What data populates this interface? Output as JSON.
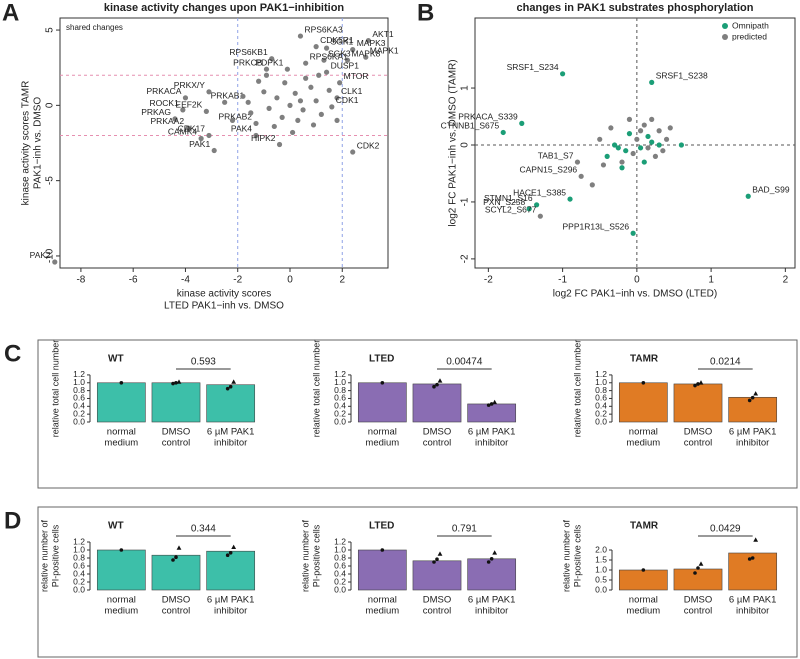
{
  "chart_data": [
    {
      "type": "scatter",
      "panel": "A",
      "title": "kinase activity changes upon PAK1−inhibition",
      "xlabel": [
        "kinase activity scores",
        "LTED PAK1−inh vs. DMSO"
      ],
      "ylabel": [
        "kinase activity scores TAMR",
        "PAK1−inh vs. DMSO"
      ],
      "xlim": [
        -8.8,
        3.75
      ],
      "ylim": [
        -10.8,
        5.8
      ],
      "xticks": [
        -8,
        -6,
        -4,
        -2,
        0,
        2
      ],
      "yticks": [
        -10,
        -5,
        0,
        5
      ],
      "vlines": [
        -2,
        2
      ],
      "hlines": [
        -2,
        2
      ],
      "vline_color": "#8fa3e6",
      "hline_color": "#e68fb0",
      "annotation": {
        "text": "shared changes",
        "color": "#c8306e"
      },
      "series": [
        {
          "color": "#7f7f7f",
          "x": [
            -9,
            3.0,
            2.4,
            2.9,
            2.2,
            0.4,
            1.0,
            1.4,
            -0.7,
            1.3,
            -0.9,
            -0.1,
            0.6,
            1.4,
            1.9,
            1.8,
            1.6,
            -3.1,
            -4.0,
            -1.6,
            -4.1,
            -3.2,
            -4.4,
            -3.9,
            -3.4,
            -1.3,
            -1.3,
            -0.4,
            2.4,
            -3.1,
            -2.9,
            -0.5,
            0.2,
            0.5,
            -0.8,
            1.0,
            0.8,
            -0.3,
            0.3,
            1.2,
            -1.0,
            -0.2,
            0.6,
            -1.5,
            1.5,
            -0.6,
            0.9,
            0.0,
            -1.2,
            1.1,
            -2.5,
            -2.2,
            0.4,
            -0.9,
            1.8,
            0.1,
            -1.8
          ],
          "y": [
            -10.4,
            4.3,
            3.7,
            3.2,
            3.0,
            4.6,
            3.9,
            3.8,
            3.1,
            3.0,
            2.4,
            2.4,
            2.8,
            2.2,
            1.5,
            0.5,
            -0.1,
            0.9,
            0.5,
            0.2,
            -0.3,
            -0.4,
            -0.9,
            -1.5,
            -2.2,
            -1.2,
            -2.0,
            -2.6,
            -3.1,
            -2.0,
            -3.0,
            0.5,
            0.8,
            -0.3,
            -0.2,
            0.3,
            1.2,
            -0.8,
            -1.0,
            -0.6,
            0.9,
            1.5,
            1.8,
            -0.5,
            1.0,
            -1.4,
            -1.3,
            0.0,
            1.6,
            2.0,
            0.2,
            -1.0,
            0.3,
            2.0,
            -1.0,
            -1.8,
            0.6
          ],
          "labels": [
            "PAK2",
            "AKT1",
            "MAPK3",
            "MAPK1",
            "MAPK8",
            "RPS6KA3",
            "CDK5R1",
            "SGK1",
            "RPS6KB1",
            "SGK3",
            "PRKCB",
            "PDPK1",
            "RPS6KA1",
            "DUSP1",
            "MTOR",
            "CLK1",
            "CDK1",
            "PRKX/Y",
            "PRKACA",
            "PRKAB1",
            "ROCK1",
            "EEF2K",
            "PRKAG",
            "PRKAA2",
            "CAMK4",
            "PRKAB2",
            "PAK4",
            "HIPK2",
            "CDK2",
            "CDK17",
            "PAK1",
            null,
            null,
            null,
            null,
            null,
            null,
            null,
            null,
            null,
            null,
            null,
            null,
            null,
            null,
            null,
            null,
            null,
            null,
            null,
            null,
            null,
            null,
            null,
            null,
            null,
            null
          ],
          "label_colors": [
            "#c8306e",
            "#c8306e",
            "#c8306e",
            "#c8306e",
            "#c8306e",
            "#222",
            "#222",
            "#222",
            "#222",
            "#222",
            "#222",
            "#222",
            "#222",
            "#222",
            "#222",
            "#222",
            "#222",
            "#222",
            "#222",
            "#222",
            "#222",
            "#222",
            "#222",
            "#222",
            "#222",
            "#222",
            "#222",
            "#222",
            "#222",
            "#c8306e",
            "#c8306e",
            null,
            null,
            null,
            null,
            null,
            null,
            null,
            null,
            null,
            null,
            null,
            null,
            null,
            null,
            null,
            null,
            null,
            null,
            null,
            null,
            null,
            null,
            null,
            null,
            null,
            null
          ]
        }
      ]
    },
    {
      "type": "scatter",
      "panel": "B",
      "title": "changes in PAK1 substrates phosphorylation",
      "xlabel": [
        "log2 FC PAK1−inh vs. DMSO (LTED)"
      ],
      "ylabel": [
        "log2 FC PAK1−inh vs. DMSO (TAMR)"
      ],
      "xlim": [
        -2.18,
        2.13
      ],
      "ylim": [
        -2.16,
        2.23
      ],
      "xticks": [
        -2,
        -1,
        0,
        1,
        2
      ],
      "yticks": [
        -2,
        -1,
        0,
        1
      ],
      "vlines": [
        0
      ],
      "hlines": [
        0
      ],
      "vline_color": "#555",
      "hline_color": "#555",
      "legend": "top-right",
      "series": [
        {
          "name": "Omnipath",
          "color": "#1b9e77",
          "x": [
            -1.0,
            0.2,
            -1.55,
            -1.8,
            -1.35,
            -1.45,
            1.5,
            -0.05,
            -0.9,
            -0.3,
            -0.15,
            -0.25,
            0.05,
            0.2,
            -0.1,
            0.3,
            0.6,
            0.1,
            -0.4,
            -0.2,
            0.15
          ],
          "y": [
            1.25,
            1.1,
            0.38,
            0.22,
            -1.05,
            -1.12,
            -0.9,
            -1.55,
            -0.95,
            0.0,
            -0.1,
            -0.05,
            -0.05,
            0.05,
            0.2,
            0.0,
            0.0,
            -0.3,
            -0.2,
            -0.4,
            0.15
          ],
          "labels": [
            "SRSF1_S234",
            "SRSF1_S238",
            "PRKACA_S339",
            "CTNNB1_S675",
            "STMN1_S16",
            "PXN_S258",
            "BAD_S99",
            "PPP1R13L_S526",
            "HACE1_S385",
            null,
            null,
            null,
            null,
            null,
            null,
            null,
            null,
            null,
            null,
            null,
            null
          ]
        },
        {
          "name": "predicted",
          "color": "#7f7f7f",
          "x": [
            -0.8,
            -0.75,
            -1.3,
            -0.35,
            0.0,
            0.1,
            0.2,
            -0.05,
            0.25,
            0.4,
            -0.5,
            -0.45,
            0.05,
            -0.1,
            0.3,
            0.35,
            -0.6,
            -0.2,
            0.15,
            0.45
          ],
          "y": [
            -0.3,
            -0.55,
            -1.25,
            0.3,
            0.1,
            0.35,
            0.45,
            -0.15,
            -0.2,
            0.1,
            0.1,
            -0.35,
            0.25,
            0.45,
            0.25,
            -0.1,
            -0.7,
            -0.3,
            -0.05,
            0.3
          ],
          "labels": [
            "TAB1_S7",
            "CAPN15_S296",
            "SCYL2_S677",
            null,
            null,
            null,
            null,
            null,
            null,
            null,
            null,
            null,
            null,
            null,
            null,
            null,
            null,
            null,
            null,
            null
          ]
        }
      ]
    },
    {
      "type": "bar",
      "panel": "C",
      "title": "WT",
      "color": "#3dbfa9",
      "ylabel": [
        "relative total cell number"
      ],
      "categories": [
        [
          "normal",
          "medium"
        ],
        [
          "DMSO",
          "control"
        ],
        [
          "6 µM PAK1",
          "inhibitor"
        ]
      ],
      "values": [
        1.0,
        1.0,
        0.95
      ],
      "replicates": [
        [
          1.0
        ],
        [
          0.98,
          1.0,
          1.02
        ],
        [
          0.85,
          0.9,
          1.02
        ]
      ],
      "ylim": [
        0,
        1.3
      ],
      "yticks": [
        {
          "value": 0,
          "label": "0.0"
        },
        0.2,
        0.4,
        0.6,
        0.8,
        {
          "value": 1,
          "label": "1.0"
        },
        1.2
      ],
      "comparison": {
        "between": [
          1,
          2
        ],
        "label": "0.593"
      }
    },
    {
      "type": "bar",
      "title": "LTED",
      "color": "#8a6db3",
      "ylabel": [
        "relative total cell number"
      ],
      "categories": [
        [
          "normal",
          "medium"
        ],
        [
          "DMSO",
          "control"
        ],
        [
          "6 µM PAK1",
          "inhibitor"
        ]
      ],
      "values": [
        1.0,
        0.97,
        0.46
      ],
      "replicates": [
        [
          1.0
        ],
        [
          0.9,
          0.95,
          1.05
        ],
        [
          0.43,
          0.46,
          0.5
        ]
      ],
      "ylim": [
        0,
        1.3
      ],
      "yticks": [
        {
          "value": 0,
          "label": "0.0"
        },
        0.2,
        0.4,
        0.6,
        0.8,
        {
          "value": 1,
          "label": "1.0"
        },
        1.2
      ],
      "comparison": {
        "between": [
          1,
          2
        ],
        "label": "0.00474"
      }
    },
    {
      "type": "bar",
      "title": "TAMR",
      "color": "#e07b24",
      "ylabel": [
        "relative total cell number"
      ],
      "categories": [
        [
          "normal",
          "medium"
        ],
        [
          "DMSO",
          "control"
        ],
        [
          "6 µM PAK1",
          "inhibitor"
        ]
      ],
      "values": [
        1.0,
        0.97,
        0.63
      ],
      "replicates": [
        [
          1.0
        ],
        [
          0.93,
          0.97,
          1.0
        ],
        [
          0.55,
          0.62,
          0.72
        ]
      ],
      "ylim": [
        0,
        1.3
      ],
      "yticks": [
        {
          "value": 0,
          "label": "0.0"
        },
        0.2,
        0.4,
        0.6,
        0.8,
        {
          "value": 1,
          "label": "1.0"
        },
        1.2
      ],
      "comparison": {
        "between": [
          1,
          2
        ],
        "label": "0.0214"
      }
    },
    {
      "type": "bar",
      "panel": "D",
      "title": "WT",
      "color": "#3dbfa9",
      "ylabel": [
        "relative number of",
        "PI-positive cells"
      ],
      "categories": [
        [
          "normal",
          "medium"
        ],
        [
          "DMSO",
          "control"
        ],
        [
          "6 µM PAK1",
          "inhibitor"
        ]
      ],
      "values": [
        1.0,
        0.87,
        0.97
      ],
      "replicates": [
        [
          1.0
        ],
        [
          0.75,
          0.82,
          1.05
        ],
        [
          0.87,
          0.93,
          1.07
        ]
      ],
      "ylim": [
        0,
        1.3
      ],
      "yticks": [
        {
          "value": 0,
          "label": "0.0"
        },
        0.2,
        0.4,
        0.6,
        0.8,
        {
          "value": 1,
          "label": "1.0"
        },
        1.2
      ],
      "comparison": {
        "between": [
          1,
          2
        ],
        "label": "0.344"
      }
    },
    {
      "type": "bar",
      "title": "LTED",
      "color": "#8a6db3",
      "ylabel": [
        "relative number of",
        "PI-positive cells"
      ],
      "categories": [
        [
          "normal",
          "medium"
        ],
        [
          "DMSO",
          "control"
        ],
        [
          "6 µM PAK1",
          "inhibitor"
        ]
      ],
      "values": [
        1.0,
        0.73,
        0.78
      ],
      "replicates": [
        [
          1.0
        ],
        [
          0.7,
          0.77,
          0.9
        ],
        [
          0.7,
          0.78,
          0.93
        ]
      ],
      "ylim": [
        0,
        1.3
      ],
      "yticks": [
        {
          "value": 0,
          "label": "0.0"
        },
        0.2,
        0.4,
        0.6,
        0.8,
        {
          "value": 1,
          "label": "1.0"
        },
        1.2
      ],
      "comparison": {
        "between": [
          1,
          2
        ],
        "label": "0.791"
      }
    },
    {
      "type": "bar",
      "title": "TAMR",
      "color": "#e07b24",
      "ylabel": [
        "relative number of",
        "PI-positive cells"
      ],
      "categories": [
        [
          "normal",
          "medium"
        ],
        [
          "DMSO",
          "control"
        ],
        [
          "6 µM PAK1",
          "inhibitor"
        ]
      ],
      "values": [
        1.0,
        1.05,
        1.85
      ],
      "replicates": [
        [
          1.0
        ],
        [
          0.85,
          1.1,
          1.3
        ],
        [
          1.55,
          1.6,
          2.5
        ]
      ],
      "ylim": [
        0,
        2.6
      ],
      "yticks": [
        {
          "value": 0,
          "label": "0.0"
        },
        0.5,
        {
          "value": 1,
          "label": "1.0"
        },
        1.5,
        {
          "value": 2,
          "label": "2.0"
        }
      ],
      "comparison": {
        "between": [
          1,
          2
        ],
        "label": "0.0429"
      }
    }
  ]
}
